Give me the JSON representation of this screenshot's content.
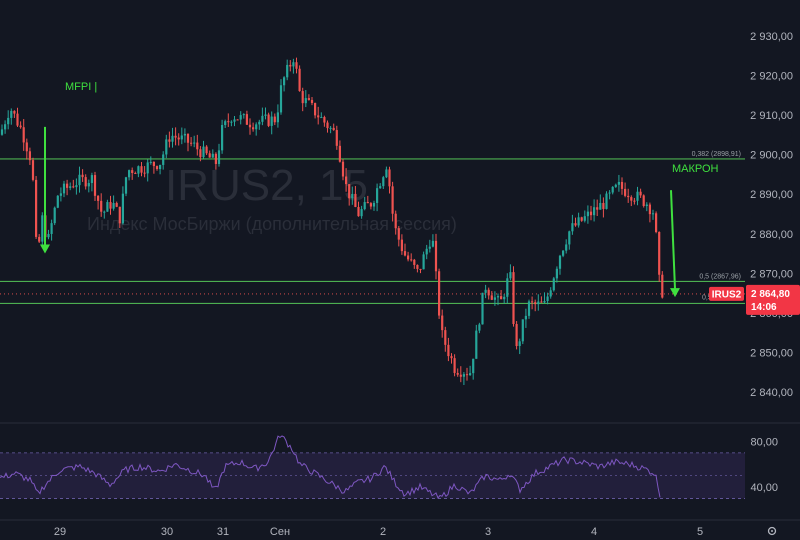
{
  "watermark": {
    "symbol": "IRUS2, 15",
    "description": "Индекс МосБиржи (дополнительная сессия)"
  },
  "colors": {
    "background": "#131722",
    "up": "#26a69a",
    "down": "#ef5350",
    "fib_line": "#4caf50",
    "annotation": "#3fe03f",
    "rsi_line": "#7e57c2",
    "rsi_band": "#2a2446",
    "price_tag": "#f23645"
  },
  "chart_data": [
    {
      "type": "candlestick",
      "symbol": "IRUS2",
      "timeframe": "15",
      "x_labels": [
        "29",
        "30",
        "31",
        "Сен",
        "2",
        "3",
        "4",
        "5"
      ],
      "y_ticks": [
        "2 930,00",
        "2 920,00",
        "2 910,00",
        "2 900,00",
        "2 890,00",
        "2 880,00",
        "2 870,00",
        "2 860,00",
        "2 850,00",
        "2 840,00"
      ],
      "ylim": [
        2838,
        2934
      ],
      "path": [
        [
          0,
          2905
        ],
        [
          10,
          2912
        ],
        [
          22,
          2906
        ],
        [
          32,
          2898
        ],
        [
          37,
          2873
        ],
        [
          42,
          2884
        ],
        [
          48,
          2878
        ],
        [
          58,
          2890
        ],
        [
          75,
          2893
        ],
        [
          92,
          2894
        ],
        [
          102,
          2885
        ],
        [
          112,
          2888
        ],
        [
          120,
          2884
        ],
        [
          127,
          2896
        ],
        [
          145,
          2897
        ],
        [
          160,
          2898
        ],
        [
          170,
          2905
        ],
        [
          190,
          2903
        ],
        [
          205,
          2900
        ],
        [
          216,
          2898
        ],
        [
          222,
          2906
        ],
        [
          232,
          2910
        ],
        [
          252,
          2908
        ],
        [
          276,
          2909
        ],
        [
          282,
          2918
        ],
        [
          294,
          2925
        ],
        [
          300,
          2915
        ],
        [
          318,
          2910
        ],
        [
          336,
          2905
        ],
        [
          346,
          2892
        ],
        [
          358,
          2885
        ],
        [
          372,
          2888
        ],
        [
          387,
          2898
        ],
        [
          394,
          2882
        ],
        [
          404,
          2875
        ],
        [
          418,
          2870
        ],
        [
          432,
          2880
        ],
        [
          441,
          2855
        ],
        [
          455,
          2846
        ],
        [
          470,
          2845
        ],
        [
          485,
          2867
        ],
        [
          500,
          2862
        ],
        [
          510,
          2870
        ],
        [
          516,
          2850
        ],
        [
          528,
          2862
        ],
        [
          545,
          2862
        ],
        [
          560,
          2875
        ],
        [
          570,
          2881
        ],
        [
          590,
          2885
        ],
        [
          605,
          2888
        ],
        [
          618,
          2892
        ],
        [
          632,
          2890
        ],
        [
          646,
          2888
        ],
        [
          655,
          2885
        ],
        [
          658,
          2869
        ],
        [
          663,
          2864.8
        ]
      ],
      "last_price": "2 864,80",
      "last_symbol": "IRUS2",
      "countdown": "14:06",
      "levels": [
        {
          "label": "0,382 (2898,91)",
          "value": 2898.91
        },
        {
          "label": "0,5 (2867,96)",
          "value": 2867.96
        },
        {
          "label": "0,5",
          "value": 2862.4
        }
      ],
      "annotations": [
        {
          "text": "MFPI |",
          "arrow_from": 2907,
          "arrow_to": 2875
        },
        {
          "text": "МАКРОН",
          "arrow_from": 2891,
          "arrow_to": 2864
        }
      ]
    },
    {
      "type": "line",
      "name": "RSI",
      "y_ticks": [
        "80,00",
        "40,00"
      ],
      "ylim": [
        20,
        90
      ],
      "band": [
        30,
        70
      ],
      "mid": 50,
      "path": [
        [
          0,
          48
        ],
        [
          15,
          52
        ],
        [
          30,
          46
        ],
        [
          38,
          34
        ],
        [
          45,
          42
        ],
        [
          60,
          55
        ],
        [
          80,
          58
        ],
        [
          95,
          52
        ],
        [
          110,
          42
        ],
        [
          125,
          55
        ],
        [
          140,
          58
        ],
        [
          160,
          54
        ],
        [
          175,
          60
        ],
        [
          190,
          55
        ],
        [
          205,
          50
        ],
        [
          215,
          36
        ],
        [
          225,
          58
        ],
        [
          240,
          62
        ],
        [
          255,
          56
        ],
        [
          268,
          62
        ],
        [
          280,
          86
        ],
        [
          292,
          74
        ],
        [
          300,
          60
        ],
        [
          315,
          52
        ],
        [
          330,
          44
        ],
        [
          345,
          36
        ],
        [
          358,
          44
        ],
        [
          372,
          48
        ],
        [
          385,
          58
        ],
        [
          395,
          44
        ],
        [
          405,
          34
        ],
        [
          420,
          40
        ],
        [
          440,
          30
        ],
        [
          455,
          42
        ],
        [
          470,
          34
        ],
        [
          485,
          50
        ],
        [
          500,
          46
        ],
        [
          510,
          52
        ],
        [
          520,
          38
        ],
        [
          535,
          52
        ],
        [
          550,
          58
        ],
        [
          565,
          64
        ],
        [
          580,
          62
        ],
        [
          600,
          58
        ],
        [
          615,
          62
        ],
        [
          630,
          60
        ],
        [
          645,
          56
        ],
        [
          655,
          52
        ],
        [
          660,
          34
        ]
      ]
    }
  ]
}
